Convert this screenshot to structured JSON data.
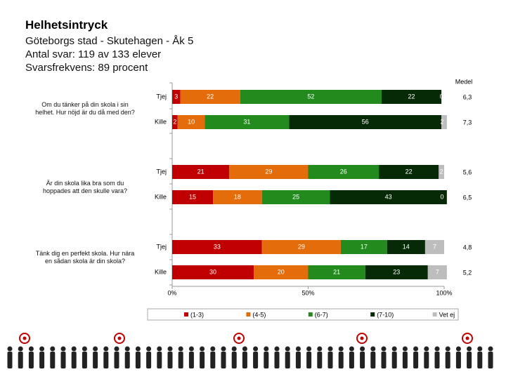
{
  "header": {
    "title": "Helhetsintryck",
    "lines": [
      "Göteborgs stad - Skutehagen - Åk 5",
      "Antal svar: 119 av 133 elever",
      "Svarsfrekvens: 89 procent"
    ]
  },
  "chart_data": {
    "type": "stacked-barh",
    "questions": [
      "Om du tänker på din skola i sin helhet. Hur nöjd är du då med den?",
      "Är din skola lika bra som du hoppades att den skulle vara?",
      "Tänk dig en perfekt skola. Hur nära en sådan skola är din skola?"
    ],
    "categories": [
      "Tjej",
      "Kille",
      "Tjej",
      "Kille",
      "Tjej",
      "Kille"
    ],
    "series": [
      {
        "name": "(1-3)",
        "color": "#c00000",
        "values": [
          3,
          2,
          21,
          15,
          33,
          30
        ]
      },
      {
        "name": "(4-5)",
        "color": "#e46c0a",
        "values": [
          22,
          10,
          29,
          18,
          29,
          20
        ]
      },
      {
        "name": "(6-7)",
        "color": "#238a1e",
        "values": [
          52,
          31,
          26,
          25,
          17,
          21
        ]
      },
      {
        "name": "(7-10)",
        "color": "#062a06",
        "values": [
          22,
          56,
          22,
          43,
          14,
          23
        ]
      },
      {
        "name": "Vet ej",
        "color": "#bdbdbd",
        "values": [
          0,
          2,
          2,
          0,
          7,
          7
        ]
      }
    ],
    "mean": {
      "name": "Medel",
      "values": [
        6.3,
        7.3,
        5.6,
        6.5,
        4.8,
        5.2
      ],
      "value_labels": [
        "6,3",
        "7,3",
        "5,6",
        "6,5",
        "4,8",
        "5,2"
      ]
    },
    "xlim": [
      0,
      100
    ],
    "xticks": [
      {
        "value": 0,
        "label": "0%"
      },
      {
        "value": 50,
        "label": "50%"
      },
      {
        "value": 100,
        "label": "100%"
      }
    ]
  }
}
